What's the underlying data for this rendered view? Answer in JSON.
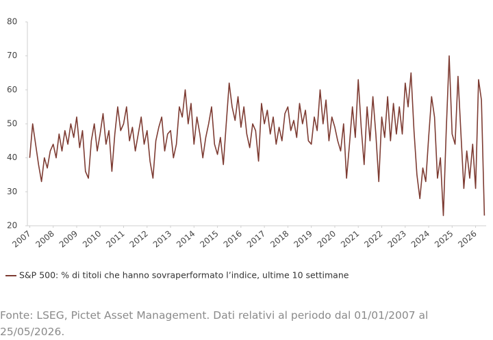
{
  "chart_data": {
    "type": "line",
    "x": [
      2007,
      2007.125,
      2007.25,
      2007.375,
      2007.5,
      2007.625,
      2007.75,
      2007.875,
      2008,
      2008.125,
      2008.25,
      2008.375,
      2008.5,
      2008.625,
      2008.75,
      2008.875,
      2009,
      2009.125,
      2009.25,
      2009.375,
      2009.5,
      2009.625,
      2009.75,
      2009.875,
      2010,
      2010.125,
      2010.25,
      2010.375,
      2010.5,
      2010.625,
      2010.75,
      2010.875,
      2011,
      2011.125,
      2011.25,
      2011.375,
      2011.5,
      2011.625,
      2011.75,
      2011.875,
      2012,
      2012.125,
      2012.25,
      2012.375,
      2012.5,
      2012.625,
      2012.75,
      2012.875,
      2013,
      2013.125,
      2013.25,
      2013.375,
      2013.5,
      2013.625,
      2013.75,
      2013.875,
      2014,
      2014.125,
      2014.25,
      2014.375,
      2014.5,
      2014.625,
      2014.75,
      2014.875,
      2015,
      2015.125,
      2015.25,
      2015.375,
      2015.5,
      2015.625,
      2015.75,
      2015.875,
      2016,
      2016.125,
      2016.25,
      2016.375,
      2016.5,
      2016.625,
      2016.75,
      2016.875,
      2017,
      2017.125,
      2017.25,
      2017.375,
      2017.5,
      2017.625,
      2017.75,
      2017.875,
      2018,
      2018.125,
      2018.25,
      2018.375,
      2018.5,
      2018.625,
      2018.75,
      2018.875,
      2019,
      2019.125,
      2019.25,
      2019.375,
      2019.5,
      2019.625,
      2019.75,
      2019.875,
      2020,
      2020.125,
      2020.25,
      2020.375,
      2020.5,
      2020.625,
      2020.75,
      2020.875,
      2021,
      2021.125,
      2021.25,
      2021.375,
      2021.5,
      2021.625,
      2021.75,
      2021.875,
      2022,
      2022.125,
      2022.25,
      2022.375,
      2022.5,
      2022.625,
      2022.75,
      2022.875,
      2023,
      2023.125,
      2023.25,
      2023.375,
      2023.5,
      2023.625,
      2023.75,
      2023.875,
      2024,
      2024.125,
      2024.25,
      2024.375,
      2024.5,
      2024.625,
      2024.75,
      2024.875,
      2025,
      2025.125,
      2025.25,
      2025.375,
      2025.5,
      2025.625,
      2025.75,
      2025.875,
      2026,
      2026.125,
      2026.25,
      2026.375
    ],
    "series": [
      {
        "name": "S&P 500: % di titoli che hanno sovraperformato l’indice, ultime 10 settimane",
        "color": "#7d3b32",
        "values": [
          40,
          50,
          44,
          38,
          33,
          40,
          37,
          42,
          44,
          40,
          47,
          42,
          48,
          44,
          50,
          46,
          52,
          43,
          48,
          36,
          34,
          45,
          50,
          42,
          47,
          53,
          44,
          48,
          36,
          47,
          55,
          48,
          50,
          55,
          45,
          49,
          42,
          47,
          52,
          44,
          48,
          39,
          34,
          45,
          49,
          52,
          42,
          47,
          48,
          40,
          44,
          55,
          52,
          60,
          50,
          56,
          44,
          52,
          47,
          40,
          46,
          50,
          55,
          44,
          41,
          46,
          38,
          50,
          62,
          55,
          51,
          58,
          49,
          55,
          47,
          43,
          50,
          48,
          39,
          56,
          50,
          54,
          47,
          52,
          44,
          49,
          45,
          53,
          55,
          48,
          51,
          46,
          56,
          50,
          54,
          45,
          44,
          52,
          48,
          60,
          50,
          57,
          45,
          52,
          49,
          45,
          42,
          50,
          34,
          44,
          55,
          46,
          63,
          49,
          38,
          55,
          45,
          58,
          47,
          33,
          52,
          46,
          58,
          45,
          56,
          47,
          55,
          47,
          62,
          55,
          65,
          48,
          35,
          28,
          37,
          33,
          46,
          58,
          52,
          34,
          40,
          23,
          48,
          70,
          47,
          44,
          64,
          47,
          31,
          42,
          34,
          44,
          31,
          63,
          57,
          23
        ]
      }
    ],
    "xlim": [
      2006.9,
      2026.45
    ],
    "xticks": [
      2007,
      2008,
      2009,
      2010,
      2011,
      2012,
      2013,
      2014,
      2015,
      2016,
      2017,
      2018,
      2019,
      2020,
      2021,
      2022,
      2023,
      2024,
      2025,
      2026
    ],
    "ylim": [
      20,
      80
    ],
    "yticks": [
      20,
      30,
      40,
      50,
      60,
      70,
      80
    ],
    "grid": false,
    "note": "Fonte: LSEG, Pictet Asset Management. Dati relativi al periodo dal 01/01/2007 al 25/05/2026."
  }
}
